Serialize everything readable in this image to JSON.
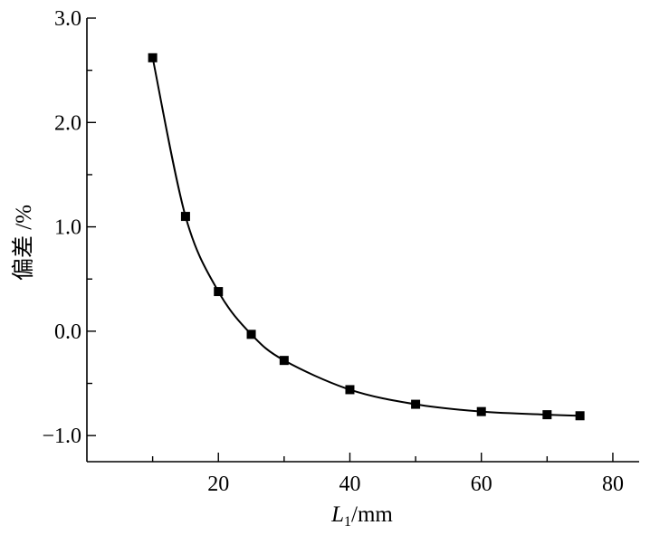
{
  "chart_data": {
    "type": "scatter",
    "title": "",
    "xlabel": {
      "main": "L",
      "sub": "1",
      "unit": "/mm"
    },
    "ylabel": "偏差 /%",
    "xlim": [
      0,
      84
    ],
    "ylim": [
      -1.25,
      3.0
    ],
    "xticks": [
      20,
      40,
      60,
      80
    ],
    "xtick_labels": [
      "20",
      "40",
      "60",
      "80"
    ],
    "yticks": [
      -1.0,
      0.0,
      1.0,
      2.0,
      3.0
    ],
    "ytick_labels": [
      "−1.0",
      "0.0",
      "1.0",
      "2.0",
      "3.0"
    ],
    "grid": false,
    "legend": "none",
    "marker": "square",
    "fit_curve": true,
    "series": [
      {
        "x": [
          10,
          15,
          20,
          25,
          30,
          40,
          50,
          60,
          70,
          75
        ],
        "y": [
          2.62,
          1.1,
          0.38,
          -0.03,
          -0.28,
          -0.56,
          -0.7,
          -0.77,
          -0.8,
          -0.81
        ]
      }
    ]
  }
}
